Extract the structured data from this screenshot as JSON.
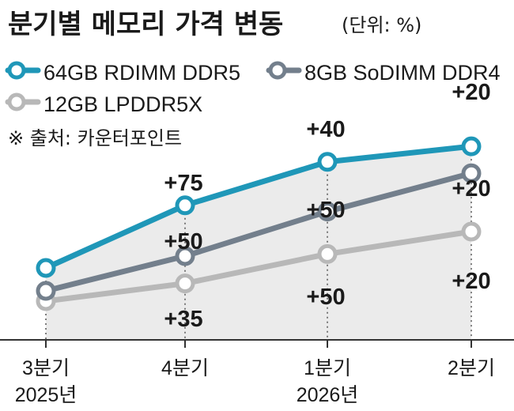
{
  "header": {
    "title": "분기별 메모리 가격 변동",
    "unit": "(단위: %)"
  },
  "source": "※ 출처: 카운터포인트",
  "colors": {
    "teal": "#1f97b8",
    "slate": "#737f8c",
    "silver": "#b8b8b8",
    "area": "#ebebeb"
  },
  "chart_data": {
    "type": "line",
    "title": "분기별 메모리 가격 변동",
    "categories": [
      [
        "3분기",
        "2025년"
      ],
      [
        "4분기",
        ""
      ],
      [
        "1분기",
        "2026년"
      ],
      [
        "2분기",
        ""
      ]
    ],
    "series": [
      {
        "name": "64GB RDIMM DDR5",
        "color": "#1f97b8",
        "values": [
          null,
          75,
          40,
          20
        ],
        "labels": [
          "",
          "+75",
          "+40",
          "+20"
        ]
      },
      {
        "name": "8GB SoDIMM DDR4",
        "color": "#737f8c",
        "values": [
          null,
          50,
          50,
          20
        ],
        "labels": [
          "",
          "+50",
          "+50",
          "+20"
        ]
      },
      {
        "name": "12GB LPDDR5X",
        "color": "#b8b8b8",
        "values": [
          null,
          35,
          50,
          20
        ],
        "labels": [
          "",
          "+35",
          "+50",
          "+20"
        ]
      }
    ],
    "grid": false,
    "legend": "top"
  }
}
